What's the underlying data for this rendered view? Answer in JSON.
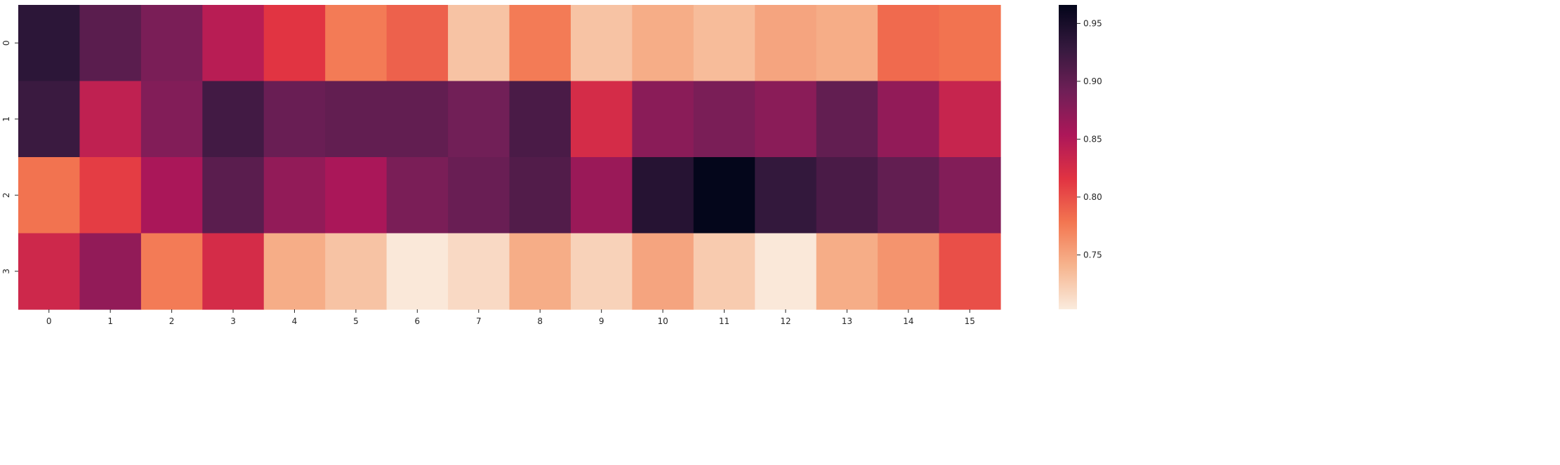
{
  "chart_data": {
    "type": "heatmap",
    "title": "",
    "xlabel": "",
    "ylabel": "",
    "x_categories": [
      "0",
      "1",
      "2",
      "3",
      "4",
      "5",
      "6",
      "7",
      "8",
      "9",
      "10",
      "11",
      "12",
      "13",
      "14",
      "15"
    ],
    "y_categories": [
      "0",
      "1",
      "2",
      "3"
    ],
    "values": [
      [
        0.935,
        0.905,
        0.885,
        0.845,
        0.815,
        0.775,
        0.79,
        0.73,
        0.775,
        0.73,
        0.745,
        0.735,
        0.75,
        0.745,
        0.785,
        0.78
      ],
      [
        0.925,
        0.84,
        0.88,
        0.92,
        0.895,
        0.9,
        0.9,
        0.89,
        0.915,
        0.825,
        0.875,
        0.885,
        0.875,
        0.9,
        0.87,
        0.835
      ],
      [
        0.78,
        0.81,
        0.855,
        0.905,
        0.87,
        0.855,
        0.885,
        0.895,
        0.91,
        0.865,
        0.94,
        0.965,
        0.93,
        0.915,
        0.9,
        0.88
      ],
      [
        0.83,
        0.87,
        0.775,
        0.825,
        0.745,
        0.73,
        0.705,
        0.715,
        0.745,
        0.72,
        0.75,
        0.725,
        0.705,
        0.745,
        0.76,
        0.8
      ]
    ],
    "colorbar": {
      "vmin": 0.703,
      "vmax": 0.966,
      "ticks": [
        "0.75",
        "0.80",
        "0.85",
        "0.90",
        "0.95"
      ],
      "tick_values": [
        0.75,
        0.8,
        0.85,
        0.9,
        0.95
      ]
    },
    "colormap": "rocket_r",
    "colormap_stops": [
      "#faebdd",
      "#f6b48e",
      "#f37651",
      "#e13342",
      "#ad1759",
      "#701f57",
      "#35193e",
      "#03051a"
    ],
    "grid": false,
    "legend": "colorbar-right"
  }
}
